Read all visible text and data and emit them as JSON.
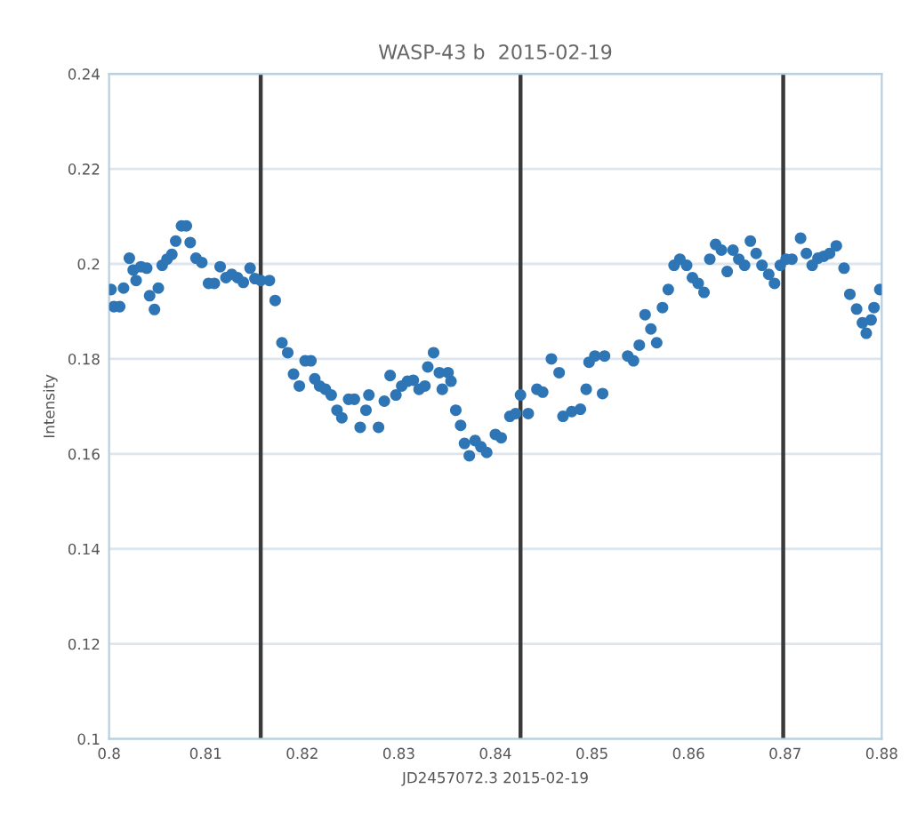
{
  "chart_data": {
    "type": "scatter",
    "title": "WASP-43 b  2015-02-19",
    "xlabel": "JD2457072.3 2015-02-19",
    "ylabel": "Intensity",
    "xlim": [
      0.8,
      0.88
    ],
    "xticks": [
      0.8,
      0.81,
      0.82,
      0.83,
      0.84,
      0.85,
      0.86,
      0.87,
      0.88
    ],
    "ylim": [
      0.1,
      0.24
    ],
    "yticks": [
      0.1,
      0.12,
      0.14,
      0.16,
      0.18,
      0.2,
      0.22,
      0.24
    ],
    "grid": "y",
    "marker": "circle",
    "legend": false,
    "ref_lines": [
      {
        "axis": "x",
        "value": 0.8157,
        "color": "#3a3a3a"
      },
      {
        "axis": "x",
        "value": 0.8426,
        "color": "#3a3a3a"
      },
      {
        "axis": "x",
        "value": 0.8698,
        "color": "#3a3a3a"
      }
    ],
    "series": [
      {
        "color": "#2e75b6",
        "x": [
          0.8002,
          0.8005,
          0.8011,
          0.8015,
          0.8021,
          0.8025,
          0.8028,
          0.8033,
          0.8039,
          0.8042,
          0.8047,
          0.8051,
          0.8055,
          0.806,
          0.8065,
          0.8069,
          0.8075,
          0.808,
          0.8084,
          0.809,
          0.8096,
          0.8103,
          0.8109,
          0.8115,
          0.8121,
          0.8127,
          0.8133,
          0.8139,
          0.8146,
          0.8151,
          0.8157,
          0.8166,
          0.8172,
          0.8179,
          0.8185,
          0.8191,
          0.8197,
          0.8203,
          0.8209,
          0.8213,
          0.8218,
          0.8224,
          0.823,
          0.8236,
          0.8241,
          0.8248,
          0.8254,
          0.826,
          0.8266,
          0.8269,
          0.8279,
          0.8285,
          0.8291,
          0.8297,
          0.8303,
          0.8309,
          0.8315,
          0.8321,
          0.8327,
          0.833,
          0.8336,
          0.8342,
          0.8345,
          0.8351,
          0.8354,
          0.8359,
          0.8364,
          0.8368,
          0.8373,
          0.8379,
          0.8385,
          0.8391,
          0.84,
          0.8406,
          0.8415,
          0.8421,
          0.8426,
          0.8434,
          0.8443,
          0.8449,
          0.8458,
          0.8466,
          0.847,
          0.8479,
          0.8488,
          0.8494,
          0.8497,
          0.8503,
          0.8511,
          0.8513,
          0.8537,
          0.8543,
          0.8549,
          0.8555,
          0.8561,
          0.8567,
          0.8573,
          0.8579,
          0.8585,
          0.8591,
          0.8598,
          0.8604,
          0.861,
          0.8616,
          0.8622,
          0.8628,
          0.8634,
          0.864,
          0.8646,
          0.8652,
          0.8658,
          0.8664,
          0.867,
          0.8676,
          0.8683,
          0.8689,
          0.8695,
          0.8701,
          0.8707,
          0.8716,
          0.8722,
          0.8728,
          0.8734,
          0.874,
          0.8746,
          0.8753,
          0.8761,
          0.8767,
          0.8774,
          0.878,
          0.8784,
          0.8789,
          0.8792,
          0.8798
        ],
        "values": [
          0.1946,
          0.191,
          0.191,
          0.1949,
          0.2012,
          0.1987,
          0.1965,
          0.1994,
          0.1991,
          0.1933,
          0.1904,
          0.1949,
          0.1997,
          0.201,
          0.202,
          0.2048,
          0.208,
          0.208,
          0.2045,
          0.2012,
          0.2003,
          0.1959,
          0.1959,
          0.1994,
          0.1971,
          0.1978,
          0.1971,
          0.1961,
          0.1991,
          0.1969,
          0.1965,
          0.1965,
          0.1923,
          0.1834,
          0.1813,
          0.1768,
          0.1743,
          0.1796,
          0.1796,
          0.1758,
          0.1743,
          0.1736,
          0.1724,
          0.1692,
          0.1676,
          0.1715,
          0.1715,
          0.1656,
          0.1692,
          0.1724,
          0.1656,
          0.1711,
          0.1765,
          0.1724,
          0.1743,
          0.1753,
          0.1755,
          0.1736,
          0.1743,
          0.1783,
          0.1813,
          0.1771,
          0.1736,
          0.1771,
          0.1753,
          0.1692,
          0.166,
          0.1622,
          0.1596,
          0.1628,
          0.1615,
          0.1603,
          0.1641,
          0.1634,
          0.1679,
          0.1685,
          0.1724,
          0.1685,
          0.1736,
          0.173,
          0.18,
          0.1771,
          0.1679,
          0.1689,
          0.1694,
          0.1736,
          0.1793,
          0.1806,
          0.1727,
          0.1806,
          0.1806,
          0.1796,
          0.1829,
          0.1893,
          0.1863,
          0.1834,
          0.1908,
          0.1946,
          0.1997,
          0.201,
          0.1997,
          0.1971,
          0.1959,
          0.194,
          0.201,
          0.2041,
          0.2029,
          0.1984,
          0.2029,
          0.201,
          0.1997,
          0.2048,
          0.2022,
          0.1997,
          0.1978,
          0.1959,
          0.1997,
          0.201,
          0.201,
          0.2054,
          0.2022,
          0.1997,
          0.2012,
          0.2016,
          0.2022,
          0.2038,
          0.1991,
          0.1936,
          0.1905,
          0.1876,
          0.1854,
          0.1882,
          0.1908,
          0.1946
        ]
      }
    ]
  }
}
